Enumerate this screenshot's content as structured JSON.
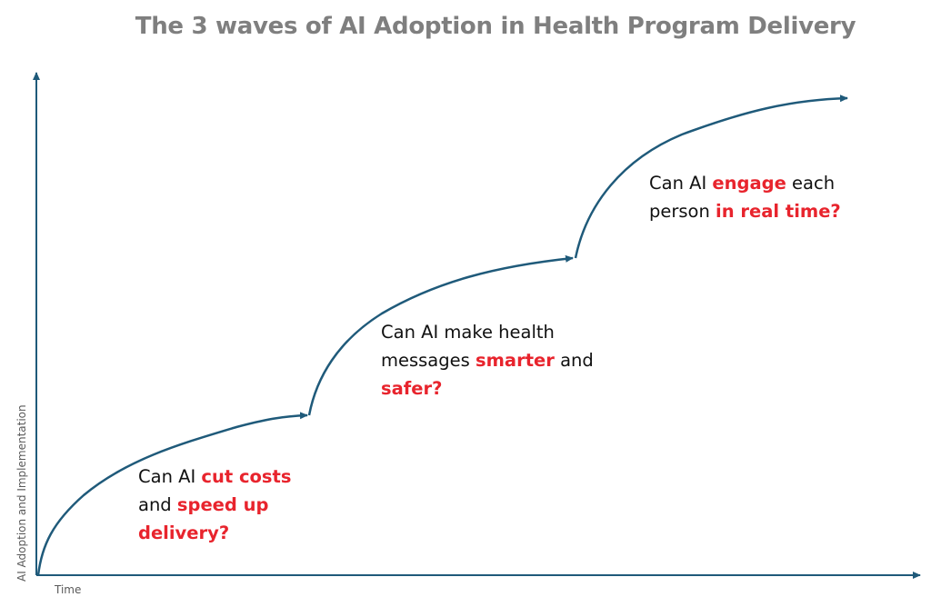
{
  "title": "The 3 waves of AI Adoption in Health Program Delivery",
  "axes": {
    "x_label": "Time",
    "y_label": "AI Adoption and Implementation"
  },
  "colors": {
    "title": "#7f7f7f",
    "curve": "#1f5a7a",
    "axis": "#1f5a7a",
    "highlight": "#e8242d",
    "text": "#111111"
  },
  "waves": [
    {
      "line1_a": "Can AI ",
      "line1_b": "cut costs",
      "line2_a": "and ",
      "line2_b": "speed up",
      "line3_a": "delivery?"
    },
    {
      "line1_a": "Can AI make health",
      "line2_a": "messages ",
      "line2_b": "smarter",
      "line2_c": " and",
      "line3_a": "safer?"
    },
    {
      "line1_a": "Can AI ",
      "line1_b": "engage",
      "line1_c": " each",
      "line2_a": "person ",
      "line2_b": "in real time?"
    }
  ]
}
